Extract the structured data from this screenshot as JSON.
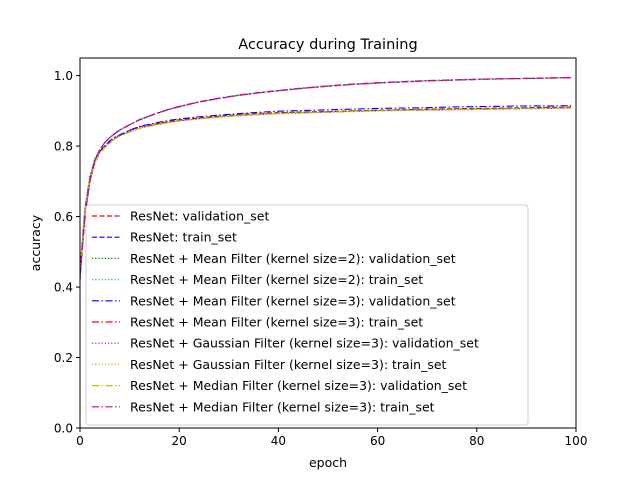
{
  "chart_data": {
    "type": "line",
    "title": "Accuracy during Training",
    "xlabel": "epoch",
    "ylabel": "accuracy",
    "xlim": [
      0,
      100
    ],
    "ylim": [
      0,
      1.05
    ],
    "x_ticks": [
      0,
      20,
      40,
      60,
      80,
      100
    ],
    "x_tick_labels": [
      "0",
      "20",
      "40",
      "60",
      "80",
      "100"
    ],
    "y_ticks": [
      0.0,
      0.2,
      0.4,
      0.6,
      0.8,
      1.0
    ],
    "y_tick_labels": [
      "0.0",
      "0.2",
      "0.4",
      "0.6",
      "0.8",
      "1.0"
    ],
    "grid": false,
    "legend_position": "lower-right",
    "x": [
      0,
      1,
      2,
      3,
      4,
      5,
      6,
      7,
      8,
      10,
      12,
      14,
      16,
      18,
      20,
      24,
      28,
      32,
      36,
      40,
      45,
      50,
      55,
      60,
      65,
      70,
      75,
      80,
      85,
      90,
      95,
      99
    ],
    "series": [
      {
        "name": "ResNet: validation_set",
        "color": "#ff0000",
        "dash": "dashed",
        "values": [
          0.44,
          0.62,
          0.71,
          0.76,
          0.79,
          0.8,
          0.81,
          0.82,
          0.83,
          0.845,
          0.855,
          0.86,
          0.865,
          0.87,
          0.875,
          0.88,
          0.885,
          0.89,
          0.893,
          0.895,
          0.897,
          0.898,
          0.9,
          0.902,
          0.903,
          0.905,
          0.906,
          0.907,
          0.908,
          0.909,
          0.91,
          0.911
        ]
      },
      {
        "name": "ResNet: train_set",
        "color": "#0000ff",
        "dash": "dashed",
        "values": [
          0.42,
          0.6,
          0.7,
          0.76,
          0.79,
          0.81,
          0.825,
          0.835,
          0.845,
          0.86,
          0.875,
          0.885,
          0.895,
          0.905,
          0.912,
          0.925,
          0.935,
          0.944,
          0.951,
          0.957,
          0.964,
          0.97,
          0.975,
          0.979,
          0.982,
          0.985,
          0.987,
          0.989,
          0.991,
          0.992,
          0.993,
          0.994
        ]
      },
      {
        "name": "ResNet + Mean Filter (kernel size=2): validation_set",
        "color": "#008000",
        "dash": "dotted",
        "values": [
          0.45,
          0.63,
          0.715,
          0.765,
          0.79,
          0.8,
          0.815,
          0.825,
          0.83,
          0.84,
          0.85,
          0.858,
          0.862,
          0.868,
          0.872,
          0.878,
          0.884,
          0.888,
          0.891,
          0.894,
          0.896,
          0.898,
          0.9,
          0.902,
          0.903,
          0.904,
          0.905,
          0.906,
          0.907,
          0.908,
          0.909,
          0.91
        ]
      },
      {
        "name": "ResNet + Mean Filter (kernel size=2): train_set",
        "color": "#00bfbf",
        "dash": "dotted",
        "values": [
          0.43,
          0.61,
          0.705,
          0.76,
          0.79,
          0.81,
          0.825,
          0.836,
          0.846,
          0.861,
          0.876,
          0.886,
          0.896,
          0.905,
          0.913,
          0.926,
          0.936,
          0.945,
          0.952,
          0.958,
          0.965,
          0.971,
          0.976,
          0.98,
          0.983,
          0.986,
          0.988,
          0.99,
          0.991,
          0.992,
          0.993,
          0.994
        ]
      },
      {
        "name": "ResNet + Mean Filter (kernel size=3): validation_set",
        "color": "#0000ff",
        "dash": "dashdot",
        "values": [
          0.44,
          0.62,
          0.71,
          0.76,
          0.785,
          0.8,
          0.815,
          0.825,
          0.832,
          0.845,
          0.856,
          0.862,
          0.868,
          0.873,
          0.877,
          0.883,
          0.888,
          0.892,
          0.896,
          0.899,
          0.901,
          0.903,
          0.905,
          0.907,
          0.908,
          0.909,
          0.911,
          0.912,
          0.913,
          0.914,
          0.914,
          0.915
        ]
      },
      {
        "name": "ResNet + Mean Filter (kernel size=3): train_set",
        "color": "#ff0000",
        "dash": "dashdot",
        "values": [
          0.43,
          0.6,
          0.7,
          0.755,
          0.79,
          0.81,
          0.824,
          0.835,
          0.845,
          0.86,
          0.874,
          0.885,
          0.895,
          0.904,
          0.911,
          0.925,
          0.935,
          0.944,
          0.951,
          0.957,
          0.964,
          0.97,
          0.975,
          0.979,
          0.982,
          0.985,
          0.987,
          0.989,
          0.991,
          0.992,
          0.993,
          0.994
        ]
      },
      {
        "name": "ResNet + Gaussian Filter (kernel size=3): validation_set",
        "color": "#bf00bf",
        "dash": "dotted",
        "values": [
          0.44,
          0.615,
          0.7,
          0.75,
          0.78,
          0.795,
          0.81,
          0.82,
          0.83,
          0.842,
          0.852,
          0.858,
          0.864,
          0.868,
          0.872,
          0.878,
          0.882,
          0.886,
          0.889,
          0.892,
          0.894,
          0.896,
          0.898,
          0.9,
          0.901,
          0.902,
          0.903,
          0.904,
          0.905,
          0.906,
          0.907,
          0.908
        ]
      },
      {
        "name": "ResNet + Gaussian Filter (kernel size=3): train_set",
        "color": "#bfbf00",
        "dash": "dotted",
        "values": [
          0.42,
          0.6,
          0.7,
          0.755,
          0.788,
          0.808,
          0.823,
          0.834,
          0.844,
          0.859,
          0.874,
          0.884,
          0.894,
          0.903,
          0.911,
          0.924,
          0.934,
          0.943,
          0.95,
          0.956,
          0.963,
          0.969,
          0.974,
          0.978,
          0.982,
          0.985,
          0.987,
          0.989,
          0.99,
          0.991,
          0.992,
          0.993
        ]
      },
      {
        "name": "ResNet + Median Filter (kernel size=3): validation_set",
        "color": "#bfbf00",
        "dash": "dashdot",
        "values": [
          0.45,
          0.625,
          0.71,
          0.755,
          0.78,
          0.795,
          0.81,
          0.82,
          0.828,
          0.84,
          0.85,
          0.856,
          0.862,
          0.867,
          0.871,
          0.877,
          0.882,
          0.886,
          0.889,
          0.892,
          0.894,
          0.896,
          0.898,
          0.9,
          0.901,
          0.902,
          0.903,
          0.904,
          0.905,
          0.906,
          0.907,
          0.908
        ]
      },
      {
        "name": "ResNet + Median Filter (kernel size=3): train_set",
        "color": "#bf00bf",
        "dash": "dashdot",
        "values": [
          0.43,
          0.61,
          0.705,
          0.76,
          0.79,
          0.81,
          0.825,
          0.836,
          0.846,
          0.861,
          0.875,
          0.886,
          0.896,
          0.905,
          0.913,
          0.926,
          0.936,
          0.945,
          0.952,
          0.958,
          0.965,
          0.971,
          0.976,
          0.98,
          0.983,
          0.986,
          0.988,
          0.99,
          0.991,
          0.992,
          0.994,
          0.995
        ]
      }
    ]
  }
}
